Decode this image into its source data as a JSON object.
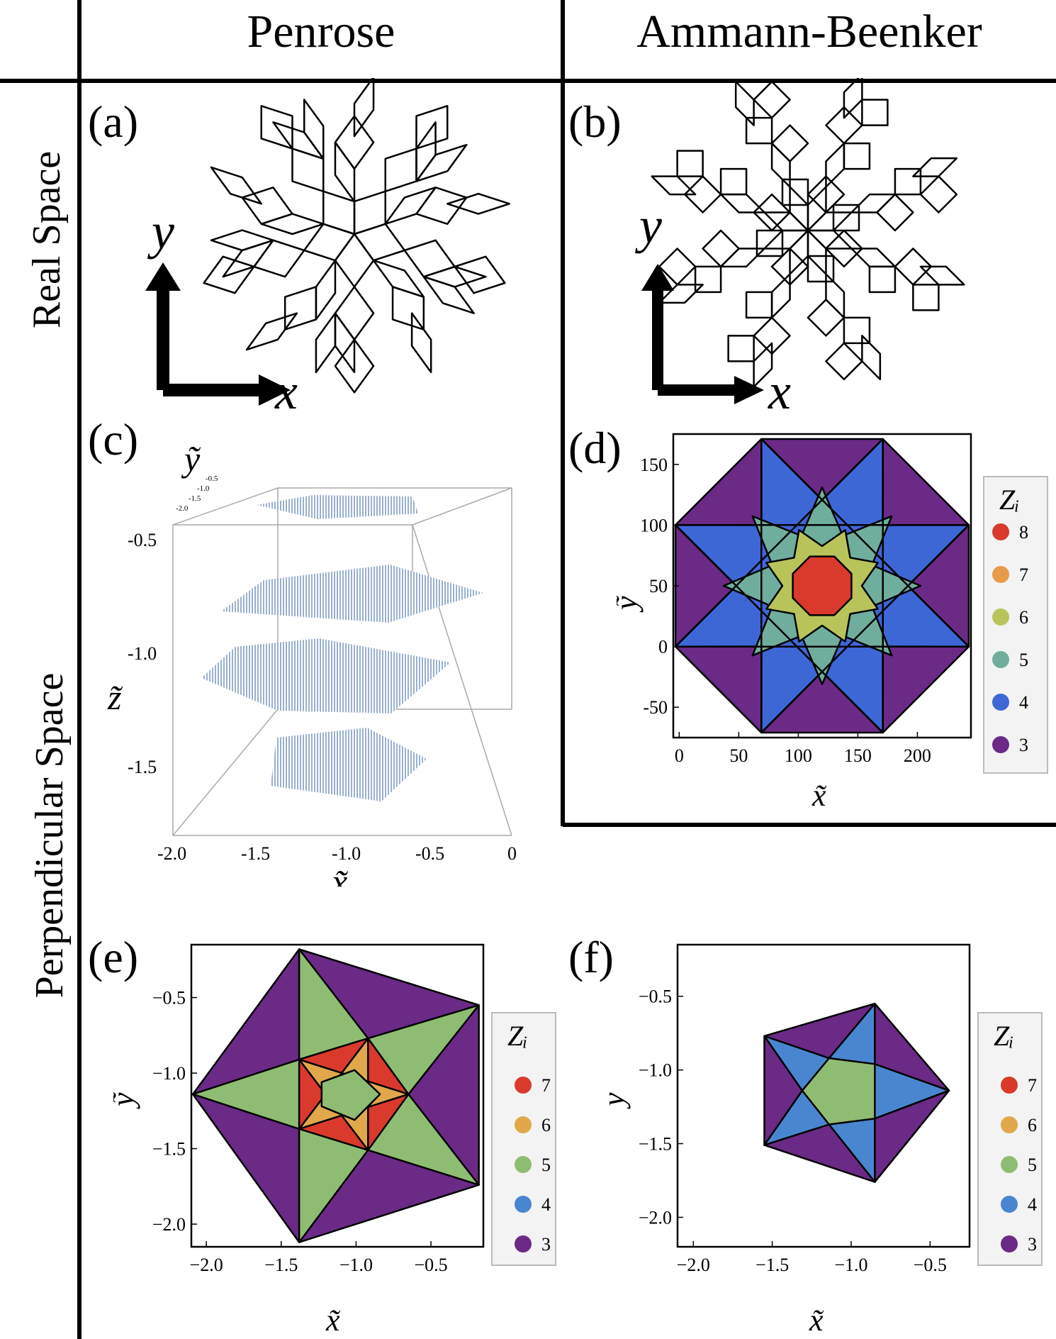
{
  "headers": {
    "col1": "Penrose",
    "col2": "Ammann-Beenker"
  },
  "row_labels": {
    "real": "Real Space",
    "perp": "Perpendicular Space"
  },
  "panels": {
    "a": {
      "label": "(a)",
      "axis_x": "x",
      "axis_y": "y"
    },
    "b": {
      "label": "(b)",
      "axis_x": "x",
      "axis_y": "y"
    },
    "c": {
      "label": "(c)",
      "xlabel": "x̃",
      "ylabel": "ỹ",
      "zlabel": "z̃",
      "xticks": [
        "-2.0",
        "-1.5",
        "-1.0",
        "-0.5",
        "0"
      ],
      "zticks": [
        "-0.5",
        "-1.0",
        "-1.5"
      ],
      "yticks": [
        "-0.5",
        "-1.0",
        "-1.5",
        "-2.0"
      ]
    },
    "d": {
      "label": "(d)",
      "xlabel": "x̃",
      "ylabel": "ỹ",
      "legend_title": "Zᵢ"
    },
    "e": {
      "label": "(e)",
      "xlabel": "x̃",
      "ylabel": "ỹ",
      "legend_title": "Zᵢ"
    },
    "f": {
      "label": "(f)",
      "xlabel": "x̃",
      "ylabel": "ỹ",
      "legend_title": "Zᵢ"
    }
  },
  "colors": {
    "z8": "#d93a2b",
    "z7": "#d93a2b",
    "z6": "#e0a84a",
    "z5": "#8fbc73",
    "z4": "#3e67d6",
    "z3": "#6b2a86",
    "z5_ab": "#6fae9c",
    "z6_ab": "#b8c45a",
    "z7_ab": "#e89a4a",
    "z4_pen": "#4a86d0"
  },
  "chart_data": [
    {
      "type": "heatmap",
      "panel": "d",
      "x": {
        "ticks": [
          0,
          50,
          100,
          150,
          200
        ],
        "lim": [
          -5,
          245
        ]
      },
      "y": {
        "ticks": [
          -50,
          0,
          50,
          100,
          150
        ],
        "lim": [
          -75,
          175
        ]
      },
      "legend": [
        {
          "value": "8"
        },
        {
          "value": "7"
        },
        {
          "value": "6"
        },
        {
          "value": "5"
        },
        {
          "value": "4"
        },
        {
          "value": "3"
        }
      ]
    },
    {
      "type": "heatmap",
      "panel": "e",
      "x": {
        "ticks": [
          "−2.0",
          "−1.5",
          "−1.0",
          "−0.5"
        ],
        "lim": [
          -2.1,
          -0.15
        ]
      },
      "y": {
        "ticks": [
          "−0.5",
          "−1.0",
          "−1.5",
          "−2.0"
        ],
        "lim": [
          -2.15,
          -0.15
        ]
      },
      "legend": [
        {
          "value": "7"
        },
        {
          "value": "6"
        },
        {
          "value": "5"
        },
        {
          "value": "4"
        },
        {
          "value": "3"
        }
      ]
    },
    {
      "type": "heatmap",
      "panel": "f",
      "x": {
        "ticks": [
          "−2.0",
          "−1.5",
          "−1.0",
          "−0.5"
        ],
        "lim": [
          -2.1,
          -0.25
        ]
      },
      "y": {
        "ticks": [
          "−0.5",
          "−1.0",
          "−1.5",
          "−2.0"
        ],
        "lim": [
          -2.2,
          -0.15
        ]
      },
      "legend": [
        {
          "value": "7"
        },
        {
          "value": "6"
        },
        {
          "value": "5"
        },
        {
          "value": "4"
        },
        {
          "value": "3"
        }
      ]
    }
  ]
}
